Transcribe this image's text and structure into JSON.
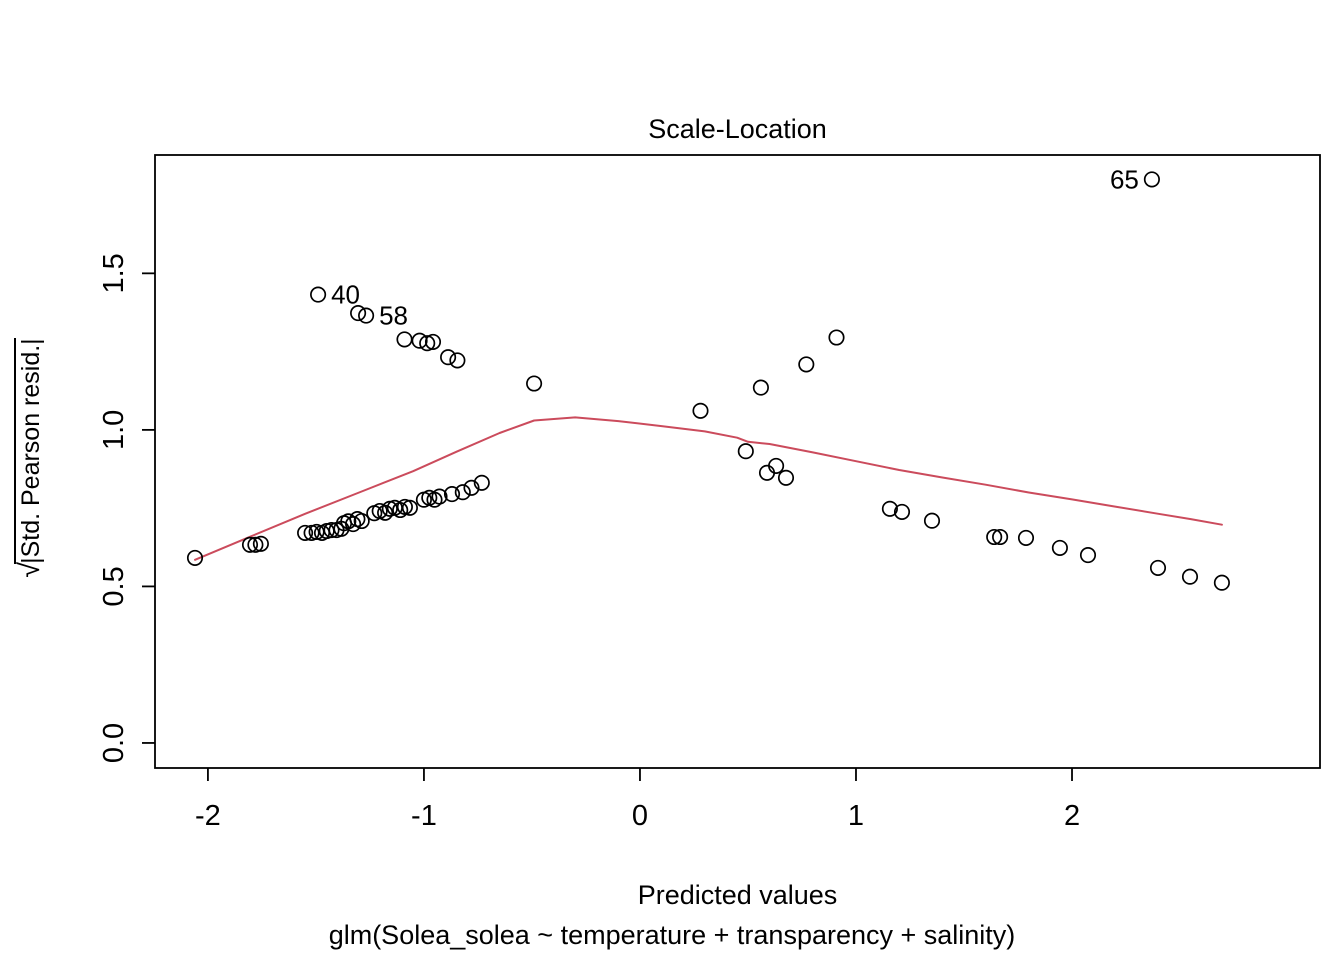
{
  "title": "Scale-Location",
  "axis": {
    "x_label": "Predicted values",
    "subtitle": "glm(Solea_solea ~ temperature + transparency + salinity)",
    "y_label_radical": "√",
    "y_label_text": "|Std. Pearson resid.|"
  },
  "colors": {
    "smooth_line": "#cb4b5c",
    "points": "#000000",
    "axis": "#000000",
    "background": "#ffffff"
  },
  "chart_data": {
    "type": "scatter",
    "title": "Scale-Location",
    "xlabel": "Predicted values",
    "ylabel": "sqrt(|Std. Pearson resid.|)",
    "subtitle": "glm(Solea_solea ~ temperature + transparency + salinity)",
    "x_range": [
      -2.245,
      3.148
    ],
    "y_range": [
      -0.08,
      1.878
    ],
    "x_ticks": [
      -2,
      -1,
      0,
      1,
      2
    ],
    "y_ticks": [
      0.0,
      0.5,
      1.0,
      1.5
    ],
    "grid": false,
    "points": [
      [
        -2.06,
        0.591
      ],
      [
        -1.805,
        0.633
      ],
      [
        -1.78,
        0.633
      ],
      [
        -1.755,
        0.636
      ],
      [
        -1.55,
        0.671
      ],
      [
        -1.52,
        0.671
      ],
      [
        -1.497,
        0.674
      ],
      [
        -1.472,
        0.671
      ],
      [
        -1.45,
        0.677
      ],
      [
        -1.428,
        0.68
      ],
      [
        -1.405,
        0.68
      ],
      [
        -1.382,
        0.684
      ],
      [
        -1.37,
        0.702
      ],
      [
        -1.35,
        0.708
      ],
      [
        -1.328,
        0.699
      ],
      [
        -1.308,
        0.715
      ],
      [
        -1.288,
        0.709
      ],
      [
        -1.23,
        0.734
      ],
      [
        -1.205,
        0.741
      ],
      [
        -1.18,
        0.735
      ],
      [
        -1.158,
        0.748
      ],
      [
        -1.135,
        0.751
      ],
      [
        -1.11,
        0.744
      ],
      [
        -1.088,
        0.754
      ],
      [
        -1.065,
        0.751
      ],
      [
        -1.0,
        0.777
      ],
      [
        -0.975,
        0.783
      ],
      [
        -0.951,
        0.777
      ],
      [
        -0.928,
        0.787
      ],
      [
        -0.87,
        0.795
      ],
      [
        -0.82,
        0.801
      ],
      [
        -0.78,
        0.815
      ],
      [
        -0.732,
        0.831
      ],
      [
        -1.305,
        1.373
      ],
      [
        -1.09,
        1.289
      ],
      [
        -1.02,
        1.285
      ],
      [
        -0.985,
        1.277
      ],
      [
        -0.958,
        1.281
      ],
      [
        -0.888,
        1.232
      ],
      [
        -0.845,
        1.222
      ],
      [
        -0.49,
        1.148
      ],
      [
        0.28,
        1.061
      ],
      [
        0.56,
        1.135
      ],
      [
        0.77,
        1.209
      ],
      [
        0.91,
        1.295
      ],
      [
        0.49,
        0.932
      ],
      [
        0.588,
        0.863
      ],
      [
        0.63,
        0.885
      ],
      [
        0.676,
        0.847
      ],
      [
        1.157,
        0.748
      ],
      [
        1.213,
        0.738
      ],
      [
        1.352,
        0.71
      ],
      [
        1.64,
        0.658
      ],
      [
        1.667,
        0.658
      ],
      [
        1.787,
        0.655
      ],
      [
        1.944,
        0.623
      ],
      [
        2.074,
        0.6
      ],
      [
        2.398,
        0.559
      ],
      [
        2.546,
        0.531
      ],
      [
        2.694,
        0.512
      ]
    ],
    "labeled_points": [
      {
        "label": "65",
        "x": 2.37,
        "y": 1.8,
        "label_side": "left"
      },
      {
        "label": "40",
        "x": -1.49,
        "y": 1.432,
        "label_side": "right"
      },
      {
        "label": "58",
        "x": -1.268,
        "y": 1.365,
        "label_side": "right"
      }
    ],
    "smooth_line": [
      [
        -2.06,
        0.585
      ],
      [
        -1.8,
        0.66
      ],
      [
        -1.55,
        0.732
      ],
      [
        -1.3,
        0.8
      ],
      [
        -1.05,
        0.868
      ],
      [
        -0.85,
        0.93
      ],
      [
        -0.65,
        0.99
      ],
      [
        -0.49,
        1.03
      ],
      [
        -0.3,
        1.04
      ],
      [
        -0.1,
        1.028
      ],
      [
        0.1,
        1.012
      ],
      [
        0.3,
        0.995
      ],
      [
        0.45,
        0.975
      ],
      [
        0.5,
        0.962
      ],
      [
        0.6,
        0.955
      ],
      [
        0.8,
        0.928
      ],
      [
        1.0,
        0.9
      ],
      [
        1.2,
        0.872
      ],
      [
        1.4,
        0.848
      ],
      [
        1.6,
        0.825
      ],
      [
        1.8,
        0.8
      ],
      [
        2.0,
        0.778
      ],
      [
        2.2,
        0.755
      ],
      [
        2.4,
        0.732
      ],
      [
        2.55,
        0.715
      ],
      [
        2.694,
        0.697
      ]
    ]
  }
}
